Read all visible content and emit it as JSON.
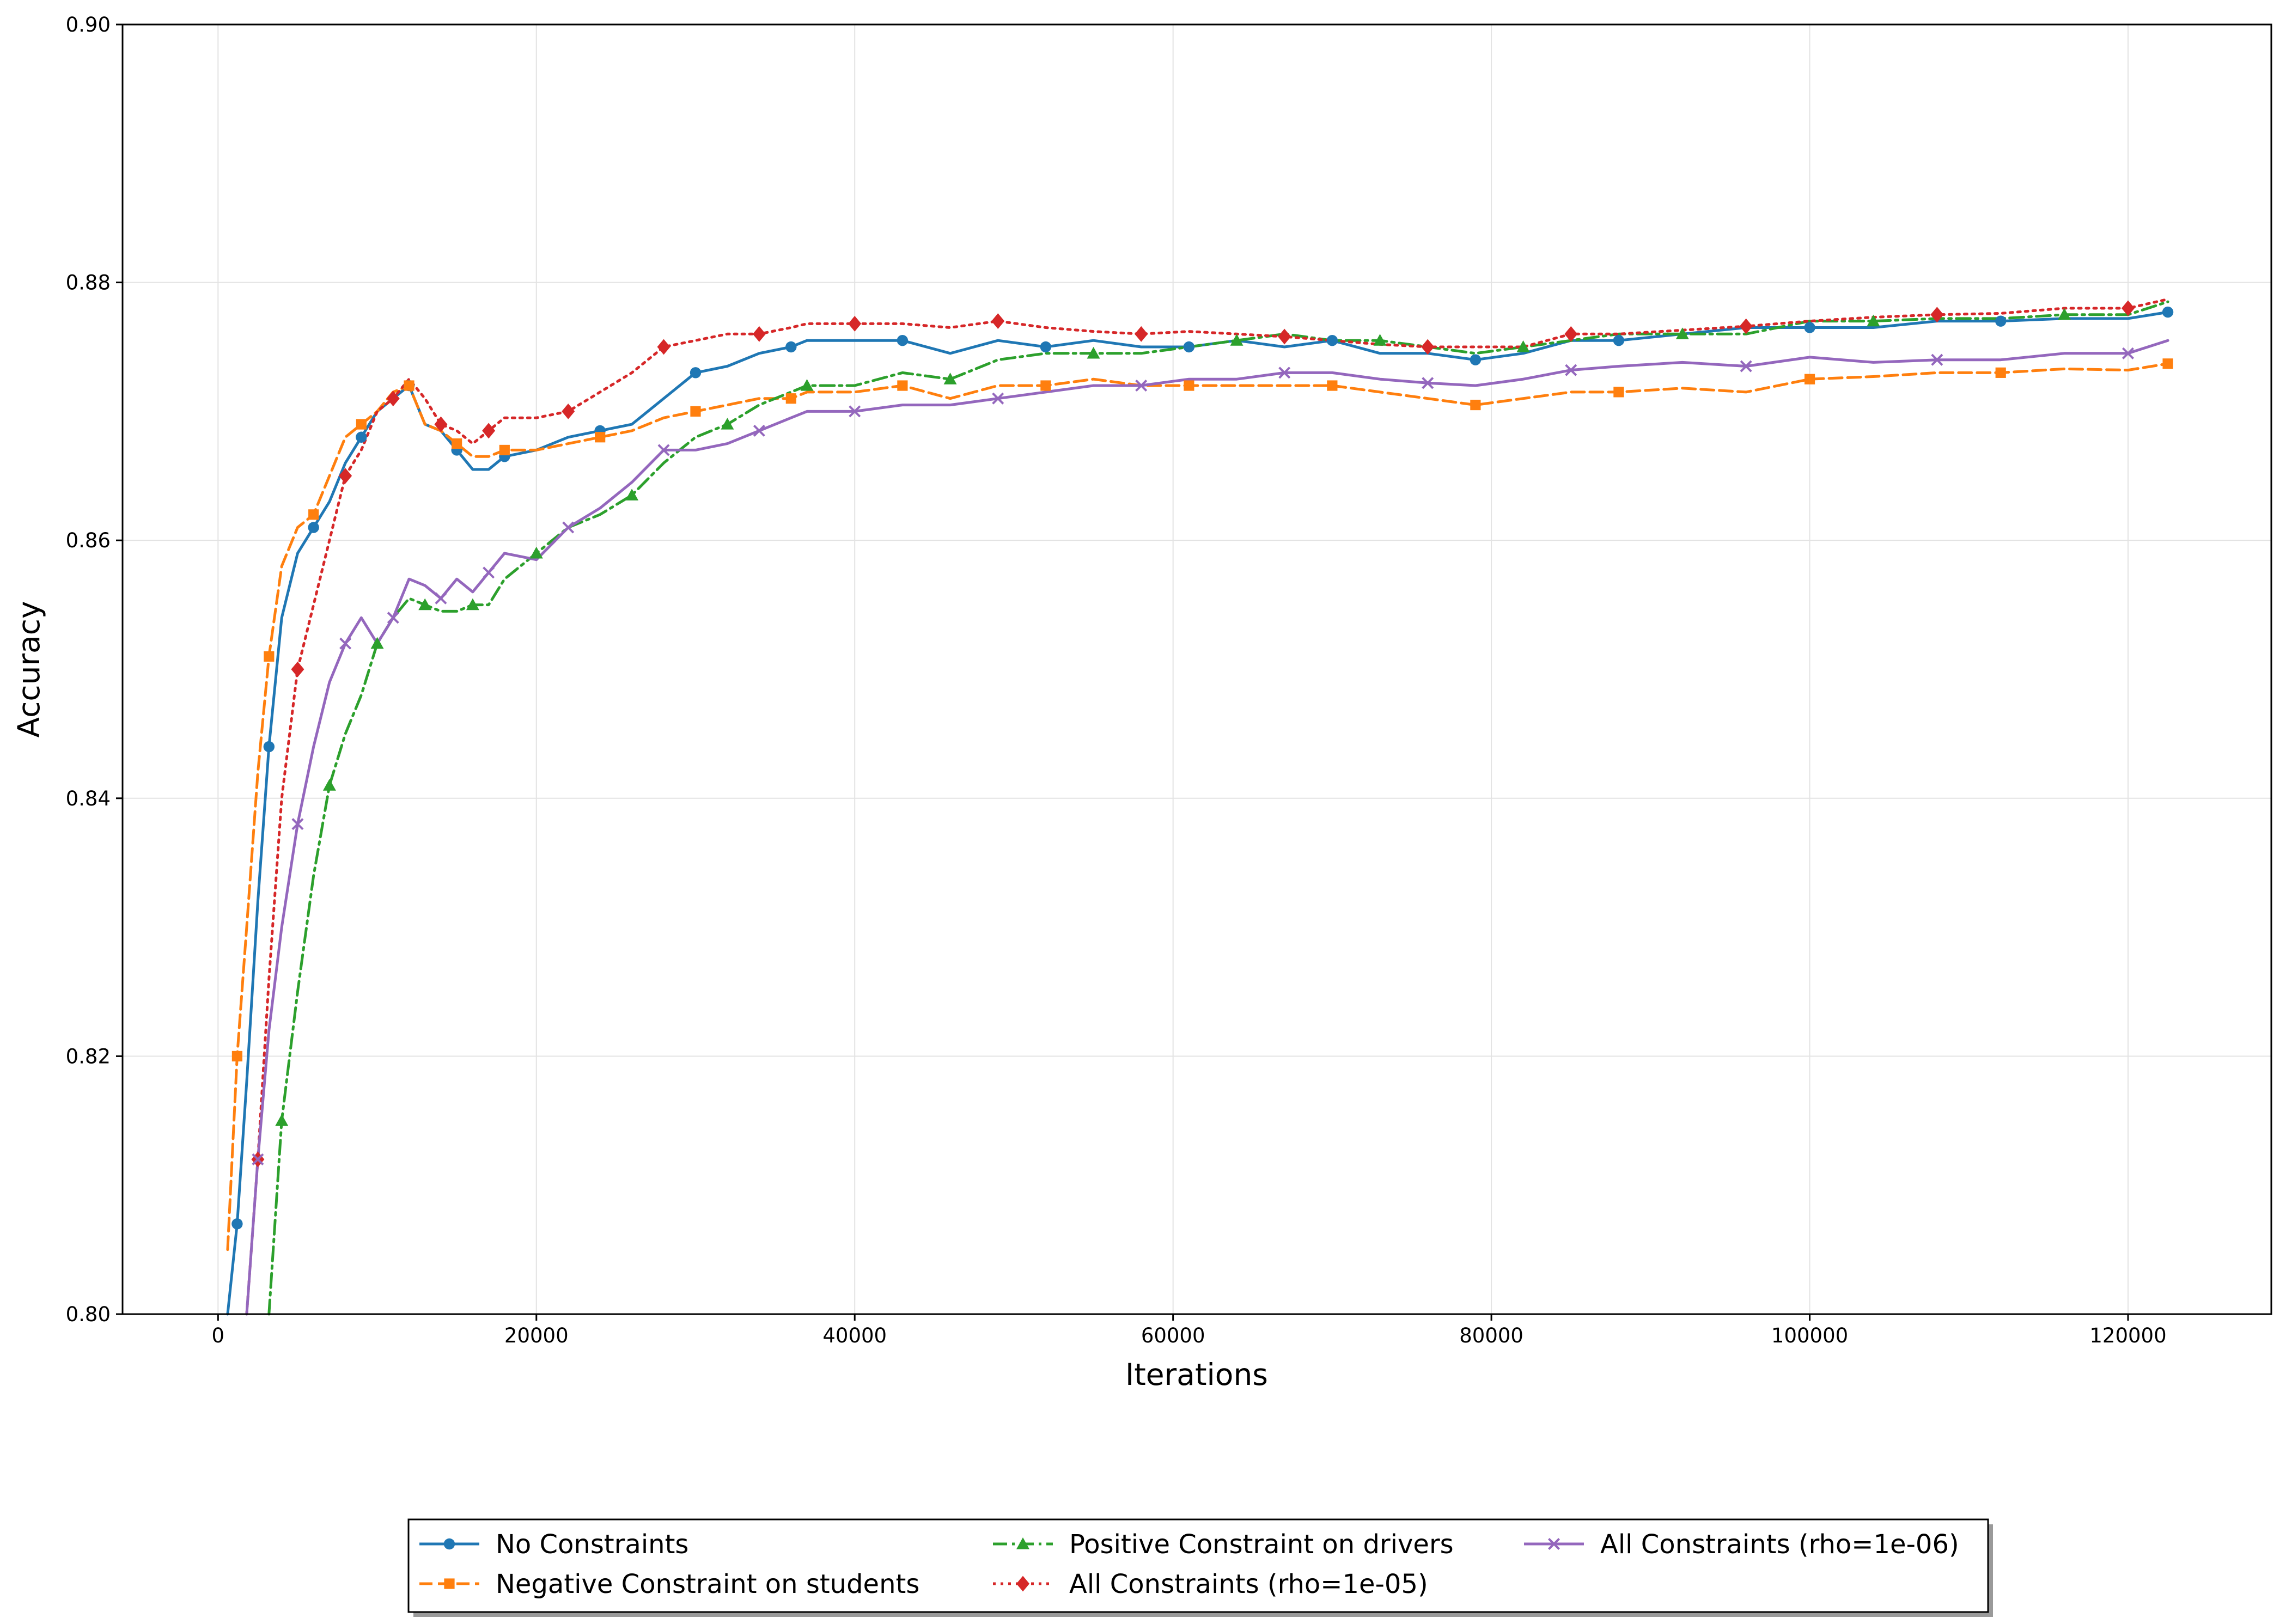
{
  "chart_data": {
    "type": "line",
    "title": "",
    "xlabel": "Iterations",
    "ylabel": "Accuracy",
    "xlim": [
      -6000,
      129000
    ],
    "ylim": [
      0.8,
      0.9
    ],
    "xticks": [
      0,
      20000,
      40000,
      60000,
      80000,
      100000,
      120000
    ],
    "yticks": [
      0.8,
      0.82,
      0.84,
      0.86,
      0.88,
      0.9
    ],
    "xtick_labels": [
      "0",
      "20000",
      "40000",
      "60000",
      "80000",
      "100000",
      "120000"
    ],
    "ytick_labels": [
      "0.80",
      "0.82",
      "0.84",
      "0.86",
      "0.88",
      "0.90"
    ],
    "grid": true,
    "legend_position": "bottom-center, below plot",
    "series": [
      {
        "name": "No Constraints",
        "color": "#1f77b4",
        "dash": "solid",
        "marker": "circle",
        "x": [
          600,
          1200,
          1800,
          2500,
          3200,
          4000,
          5000,
          6000,
          7000,
          8000,
          9000,
          10000,
          11000,
          12000,
          13000,
          14000,
          15000,
          16000,
          17000,
          18000,
          20000,
          22000,
          24000,
          26000,
          28000,
          30000,
          32000,
          34000,
          36000,
          37000,
          40000,
          43000,
          46000,
          49000,
          52000,
          55000,
          58000,
          61000,
          64000,
          67000,
          70000,
          73000,
          76000,
          79000,
          82000,
          85000,
          88000,
          92000,
          96000,
          100000,
          104000,
          108000,
          112000,
          116000,
          120000,
          122500
        ],
        "y": [
          0.8,
          0.807,
          0.818,
          0.832,
          0.844,
          0.854,
          0.859,
          0.861,
          0.863,
          0.866,
          0.868,
          0.87,
          0.871,
          0.872,
          0.869,
          0.8685,
          0.867,
          0.8655,
          0.8655,
          0.8665,
          0.867,
          0.868,
          0.8685,
          0.869,
          0.871,
          0.873,
          0.8735,
          0.8745,
          0.875,
          0.8755,
          0.8755,
          0.8755,
          0.8745,
          0.8755,
          0.875,
          0.8755,
          0.875,
          0.875,
          0.8755,
          0.875,
          0.8755,
          0.8745,
          0.8745,
          0.874,
          0.8745,
          0.8755,
          0.8755,
          0.876,
          0.8765,
          0.8765,
          0.8765,
          0.877,
          0.877,
          0.8772,
          0.8772,
          0.8777
        ]
      },
      {
        "name": "Negative Constraint on students",
        "color": "#ff7f0e",
        "dash": "dashed",
        "marker": "square",
        "x": [
          600,
          1200,
          1800,
          2500,
          3200,
          4000,
          5000,
          6000,
          7000,
          8000,
          9000,
          10000,
          11000,
          12000,
          13000,
          14000,
          15000,
          16000,
          17000,
          18000,
          20000,
          22000,
          24000,
          26000,
          28000,
          30000,
          32000,
          34000,
          36000,
          37000,
          40000,
          43000,
          46000,
          49000,
          52000,
          55000,
          58000,
          61000,
          64000,
          67000,
          70000,
          73000,
          76000,
          79000,
          82000,
          85000,
          88000,
          92000,
          96000,
          100000,
          104000,
          108000,
          112000,
          116000,
          120000,
          122500
        ],
        "y": [
          0.805,
          0.82,
          0.83,
          0.842,
          0.851,
          0.858,
          0.861,
          0.862,
          0.865,
          0.868,
          0.869,
          0.87,
          0.8715,
          0.872,
          0.869,
          0.8685,
          0.8675,
          0.8665,
          0.8665,
          0.867,
          0.867,
          0.8675,
          0.868,
          0.8685,
          0.8695,
          0.87,
          0.8705,
          0.871,
          0.871,
          0.8715,
          0.8715,
          0.872,
          0.871,
          0.872,
          0.872,
          0.8725,
          0.872,
          0.872,
          0.872,
          0.872,
          0.872,
          0.8715,
          0.871,
          0.8705,
          0.871,
          0.8715,
          0.8715,
          0.8718,
          0.8715,
          0.8725,
          0.8727,
          0.873,
          0.873,
          0.8733,
          0.8732,
          0.8737
        ]
      },
      {
        "name": "Positive Constraint on drivers",
        "color": "#2ca02c",
        "dash": "dashdot",
        "marker": "triangle",
        "x": [
          3200,
          4000,
          5000,
          6000,
          7000,
          8000,
          9000,
          10000,
          11000,
          12000,
          13000,
          14000,
          15000,
          16000,
          17000,
          18000,
          20000,
          22000,
          24000,
          26000,
          28000,
          30000,
          32000,
          34000,
          36000,
          37000,
          40000,
          43000,
          46000,
          49000,
          52000,
          55000,
          58000,
          61000,
          64000,
          67000,
          70000,
          73000,
          76000,
          79000,
          82000,
          85000,
          88000,
          92000,
          96000,
          100000,
          104000,
          108000,
          112000,
          116000,
          120000,
          122500
        ],
        "y": [
          0.8,
          0.815,
          0.825,
          0.834,
          0.841,
          0.845,
          0.848,
          0.852,
          0.854,
          0.8555,
          0.855,
          0.8545,
          0.8545,
          0.855,
          0.855,
          0.857,
          0.859,
          0.861,
          0.862,
          0.8635,
          0.866,
          0.868,
          0.869,
          0.8705,
          0.8715,
          0.872,
          0.872,
          0.873,
          0.8725,
          0.874,
          0.8745,
          0.8745,
          0.8745,
          0.875,
          0.8755,
          0.876,
          0.8755,
          0.8755,
          0.875,
          0.8745,
          0.875,
          0.8755,
          0.876,
          0.876,
          0.876,
          0.877,
          0.877,
          0.8772,
          0.8772,
          0.8775,
          0.8775,
          0.8785
        ]
      },
      {
        "name": "All Constraints (rho=1e-05)",
        "color": "#d62728",
        "dash": "dotted",
        "marker": "diamond",
        "x": [
          1800,
          2500,
          3200,
          4000,
          5000,
          6000,
          7000,
          8000,
          9000,
          10000,
          11000,
          12000,
          13000,
          14000,
          15000,
          16000,
          17000,
          18000,
          20000,
          22000,
          24000,
          26000,
          28000,
          30000,
          32000,
          34000,
          36000,
          37000,
          40000,
          43000,
          46000,
          49000,
          52000,
          55000,
          58000,
          61000,
          64000,
          67000,
          70000,
          73000,
          76000,
          79000,
          82000,
          85000,
          88000,
          92000,
          96000,
          100000,
          104000,
          108000,
          112000,
          116000,
          120000,
          122500
        ],
        "y": [
          0.8,
          0.812,
          0.826,
          0.84,
          0.85,
          0.855,
          0.86,
          0.865,
          0.867,
          0.87,
          0.871,
          0.8725,
          0.871,
          0.869,
          0.8685,
          0.8675,
          0.8685,
          0.8695,
          0.8695,
          0.87,
          0.8715,
          0.873,
          0.875,
          0.8755,
          0.876,
          0.876,
          0.8765,
          0.8768,
          0.8768,
          0.8768,
          0.8765,
          0.877,
          0.8765,
          0.8762,
          0.876,
          0.8762,
          0.876,
          0.8758,
          0.8755,
          0.8752,
          0.875,
          0.875,
          0.875,
          0.876,
          0.876,
          0.8763,
          0.8766,
          0.877,
          0.8773,
          0.8775,
          0.8776,
          0.878,
          0.878,
          0.8787
        ]
      },
      {
        "name": "All Constraints (rho=1e-06)",
        "color": "#9467bd",
        "dash": "solid",
        "marker": "x",
        "x": [
          1800,
          2500,
          3200,
          4000,
          5000,
          6000,
          7000,
          8000,
          9000,
          10000,
          11000,
          12000,
          13000,
          14000,
          15000,
          16000,
          17000,
          18000,
          20000,
          22000,
          24000,
          26000,
          28000,
          30000,
          32000,
          34000,
          36000,
          37000,
          40000,
          43000,
          46000,
          49000,
          52000,
          55000,
          58000,
          61000,
          64000,
          67000,
          70000,
          73000,
          76000,
          79000,
          82000,
          85000,
          88000,
          92000,
          96000,
          100000,
          104000,
          108000,
          112000,
          116000,
          120000,
          122500
        ],
        "y": [
          0.8,
          0.812,
          0.822,
          0.83,
          0.838,
          0.844,
          0.849,
          0.852,
          0.854,
          0.852,
          0.854,
          0.857,
          0.8565,
          0.8555,
          0.857,
          0.856,
          0.8575,
          0.859,
          0.8585,
          0.861,
          0.8625,
          0.8645,
          0.867,
          0.867,
          0.8675,
          0.8685,
          0.8695,
          0.87,
          0.87,
          0.8705,
          0.8705,
          0.871,
          0.8715,
          0.872,
          0.872,
          0.8725,
          0.8725,
          0.873,
          0.873,
          0.8725,
          0.8722,
          0.872,
          0.8725,
          0.8732,
          0.8735,
          0.8738,
          0.8735,
          0.8742,
          0.8738,
          0.874,
          0.874,
          0.8745,
          0.8745,
          0.8755
        ]
      }
    ]
  }
}
